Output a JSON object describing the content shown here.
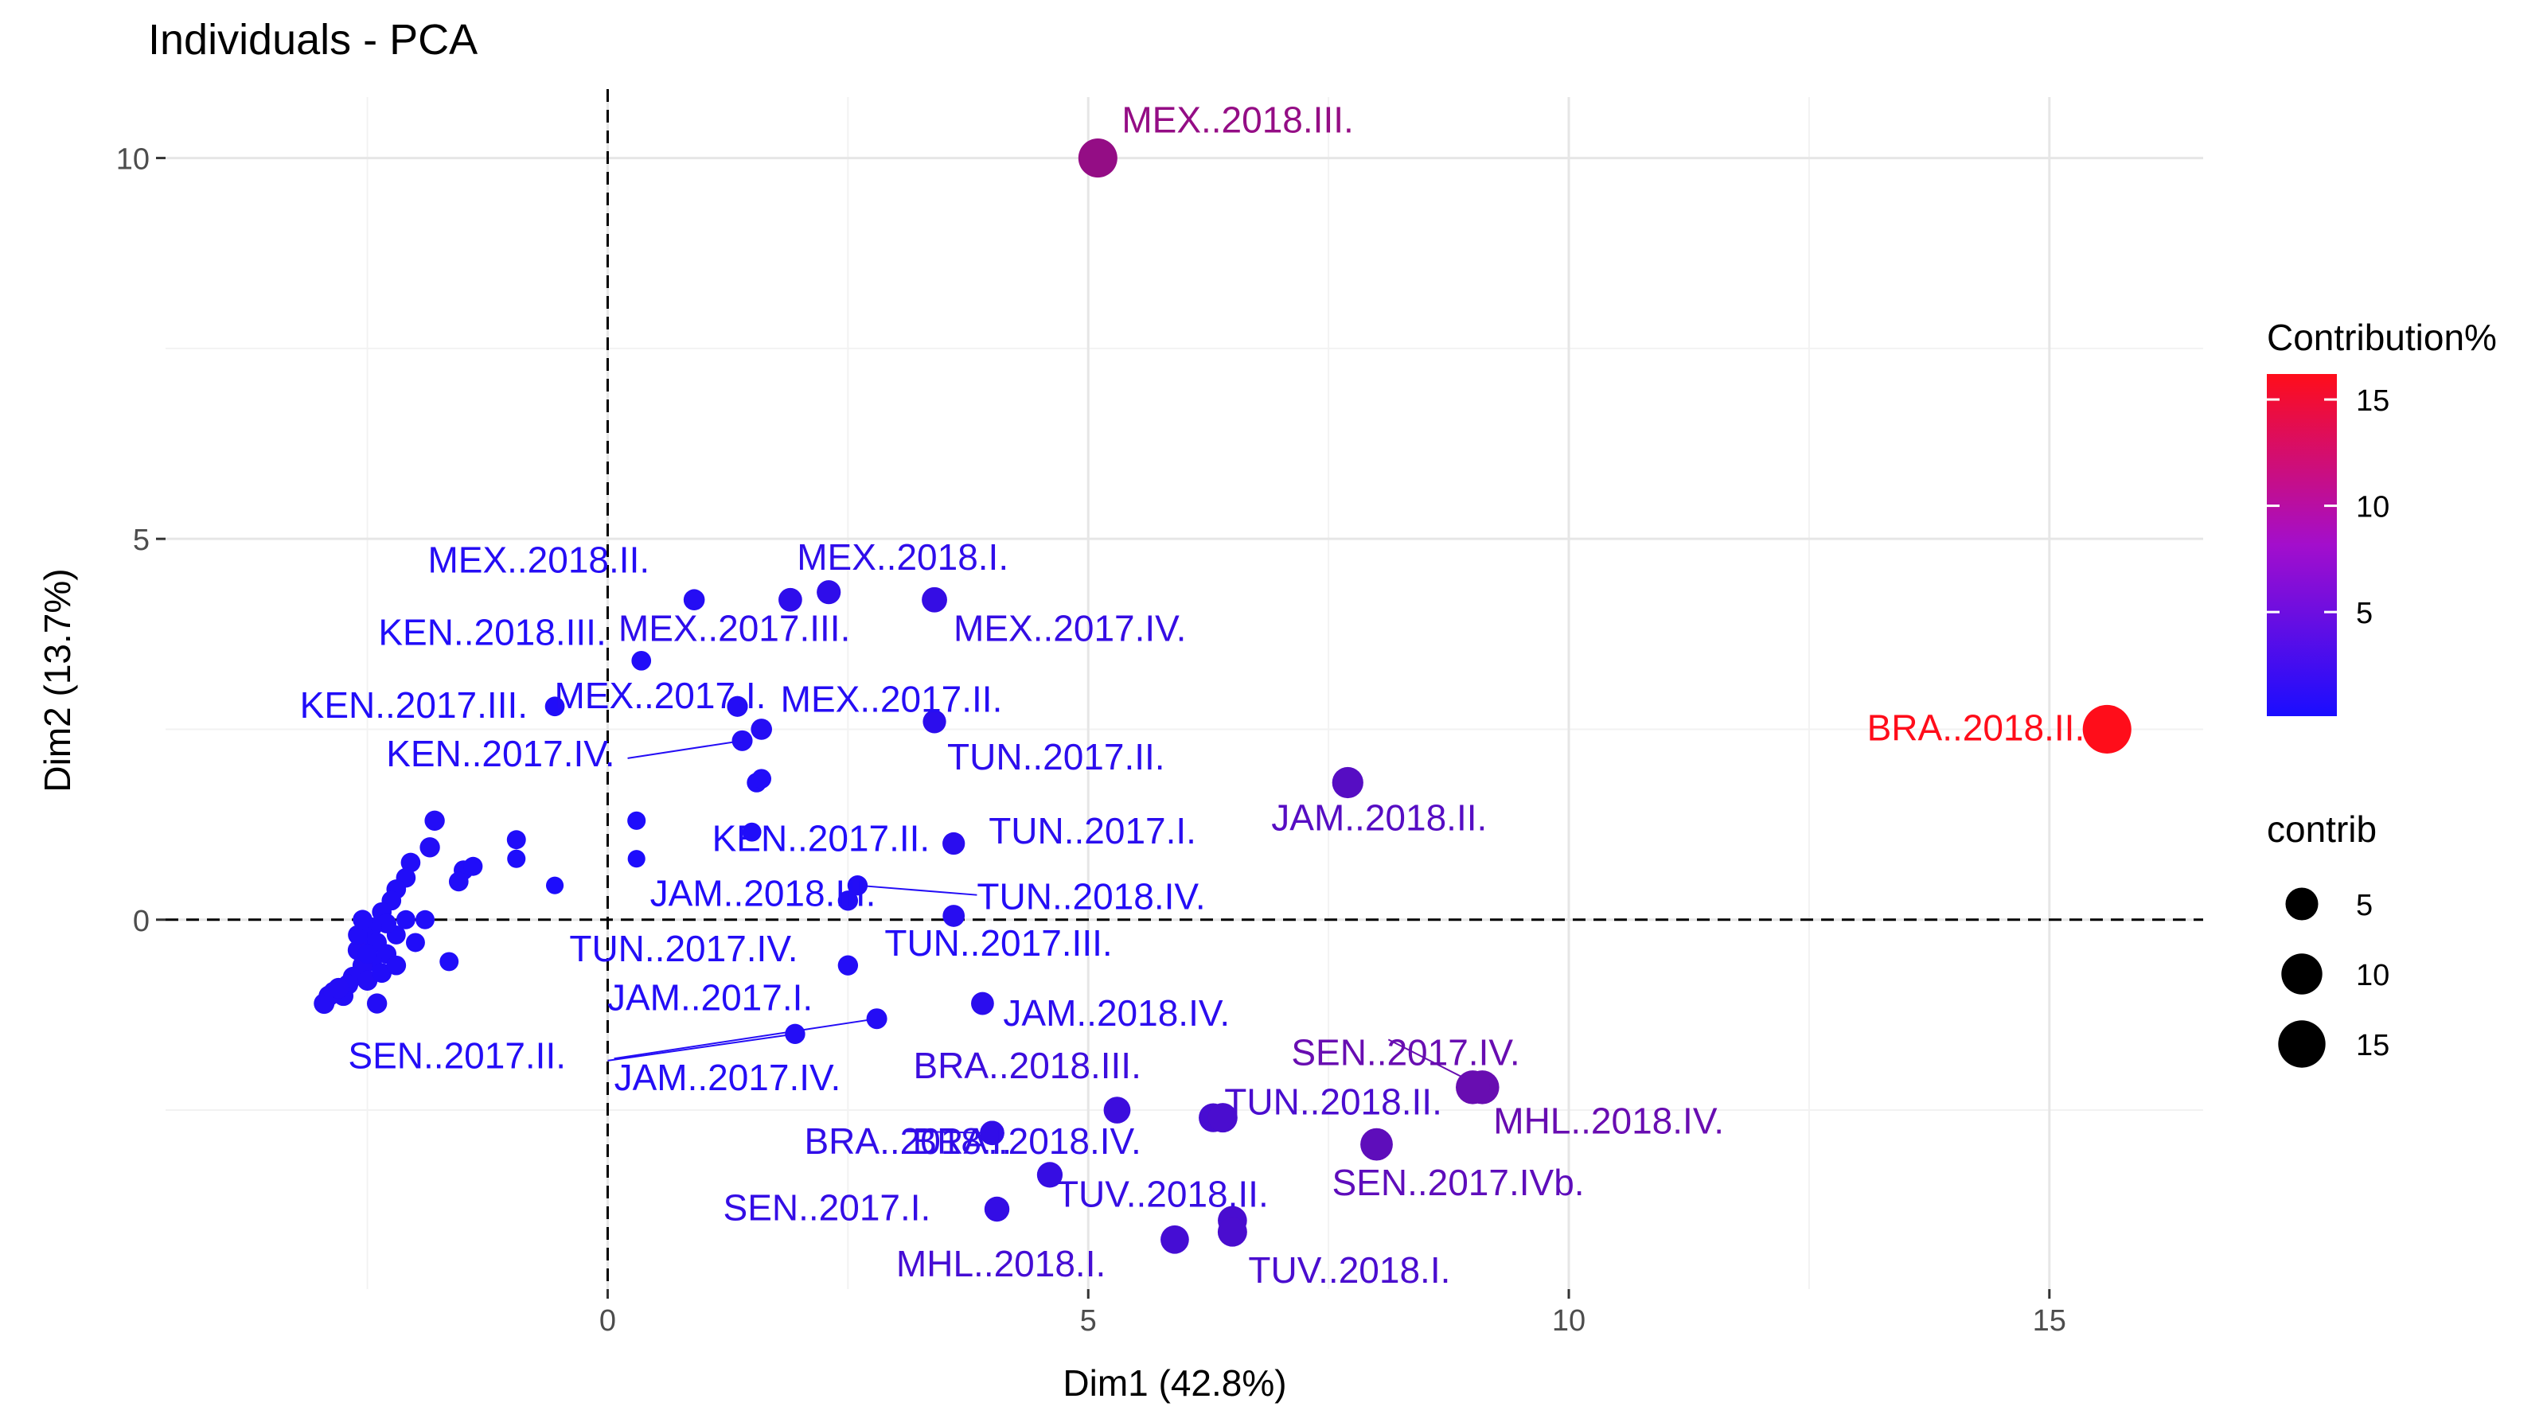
{
  "chart_data": {
    "type": "scatter",
    "title": "Individuals - PCA",
    "xlabel": "Dim1 (42.8%)",
    "ylabel": "Dim2 (13.7%)",
    "xlim": [
      -4.6,
      16.6
    ],
    "ylim": [
      -4.85,
      10.8
    ],
    "x_ticks": [
      0,
      5,
      10,
      15
    ],
    "x_tick_labels": [
      "0",
      "5",
      "10",
      "15"
    ],
    "y_ticks": [
      0,
      5,
      10
    ],
    "y_tick_labels": [
      "0",
      "5",
      "10"
    ],
    "reference_lines": {
      "x": 0,
      "y": 0,
      "style": "dashed"
    },
    "grid": true,
    "legend_color": {
      "title": "Contribution%",
      "ticks": [
        5,
        10,
        15
      ],
      "tick_labels": [
        "5",
        "10",
        "15"
      ],
      "range": [
        0.1,
        16.2
      ],
      "low_color": "#1a0dff",
      "high_color": "#ff0d1a",
      "placement": "right"
    },
    "legend_size": {
      "title": "contrib",
      "values": [
        5,
        10,
        15
      ],
      "labels": [
        "5",
        "10",
        "15"
      ],
      "placement": "right"
    },
    "labeled_points": [
      {
        "label": "MEX..2018.III.",
        "x": 5.1,
        "y": 10.0,
        "contrib": 8.7
      },
      {
        "label": "BRA..2018.II.",
        "x": 15.6,
        "y": 2.5,
        "contrib": 16.2
      },
      {
        "label": "MEX..2018.II.",
        "x": 0.9,
        "y": 4.2,
        "contrib": 0.9
      },
      {
        "label": "MEX..2018.I.",
        "x": 2.3,
        "y": 4.3,
        "contrib": 1.6
      },
      {
        "label": "MEX..2017.III.",
        "x": 1.9,
        "y": 4.2,
        "contrib": 1.5
      },
      {
        "label": "MEX..2017.IV.",
        "x": 3.4,
        "y": 4.2,
        "contrib": 2.0
      },
      {
        "label": "KEN..2018.III.",
        "x": 0.35,
        "y": 3.4,
        "contrib": 0.6
      },
      {
        "label": "KEN..2017.III.",
        "x": -0.55,
        "y": 2.8,
        "contrib": 0.6
      },
      {
        "label": "MEX..2017.I.",
        "x": 1.35,
        "y": 2.8,
        "contrib": 0.8
      },
      {
        "label": "MEX..2017.II.",
        "x": 1.6,
        "y": 2.5,
        "contrib": 0.9
      },
      {
        "label": "KEN..2017.IV.",
        "x": 1.4,
        "y": 2.35,
        "contrib": 0.8
      },
      {
        "label": "TUN..2017.II.",
        "x": 3.4,
        "y": 2.6,
        "contrib": 1.4
      },
      {
        "label": "JAM..2018.III.",
        "x": 1.6,
        "y": 1.85,
        "contrib": 0.6
      },
      {
        "label": "JAM..2018.II.",
        "x": 7.7,
        "y": 1.8,
        "contrib": 4.3
      },
      {
        "label": "KEN..2017.II.",
        "x": 1.5,
        "y": 1.15,
        "contrib": 0.5
      },
      {
        "label": "TUN..2017.I.",
        "x": 3.6,
        "y": 1.0,
        "contrib": 1.2
      },
      {
        "label": "TUN..2018.IV.",
        "x": 2.6,
        "y": 0.45,
        "contrib": 0.7
      },
      {
        "label": "TUN..2017.IV.",
        "x": 2.5,
        "y": 0.25,
        "contrib": 0.7
      },
      {
        "label": "TUN..2017.III.",
        "x": 2.5,
        "y": -0.6,
        "contrib": 0.7
      },
      {
        "label": "JAM..2017.I.",
        "x": 1.95,
        "y": -1.5,
        "contrib": 0.7
      },
      {
        "label": "SEN..2017.II.",
        "x": -2.4,
        "y": -1.1,
        "contrib": 0.7
      },
      {
        "label": "JAM..2017.IV.",
        "x": 2.8,
        "y": -1.3,
        "contrib": 0.8
      },
      {
        "label": "JAM..2018.IV.",
        "x": 3.9,
        "y": -1.1,
        "contrib": 1.3
      },
      {
        "label": "BRA..2018.III.",
        "x": 5.3,
        "y": -2.5,
        "contrib": 2.5
      },
      {
        "label": "SEN..2017.IV.",
        "x": 9.1,
        "y": -2.2,
        "contrib": 5.6
      },
      {
        "label": "TUN..2018.II.",
        "x": 6.4,
        "y": -2.6,
        "contrib": 3.5
      },
      {
        "label": "MHL..2018.IV.",
        "x": 9.0,
        "y": -2.2,
        "contrib": 5.6
      },
      {
        "label": "BRA..2018.I.",
        "x": 4.0,
        "y": -2.8,
        "contrib": 1.7
      },
      {
        "label": "BRA..2018.IV.",
        "x": 4.0,
        "y": -2.8,
        "contrib": 1.7
      },
      {
        "label": "SEN..2017.IVb.",
        "x": 8.0,
        "y": -2.95,
        "contrib": 4.9
      },
      {
        "label": "TUV..2018.II.",
        "x": 4.6,
        "y": -3.35,
        "contrib": 2.1
      },
      {
        "label": "SEN..2017.I.",
        "x": 4.05,
        "y": -3.8,
        "contrib": 1.9
      },
      {
        "label": "MHL..2018.I.",
        "x": 5.9,
        "y": -4.2,
        "contrib": 3.1
      },
      {
        "label": "TUV..2018.I.",
        "x": 6.5,
        "y": -4.1,
        "contrib": 3.5
      }
    ],
    "extra_points": [
      {
        "x": 6.3,
        "y": -2.6,
        "contrib": 3.3
      },
      {
        "x": 6.5,
        "y": -3.95,
        "contrib": 3.4
      },
      {
        "x": 3.6,
        "y": 0.05,
        "contrib": 1.1
      },
      {
        "x": 1.55,
        "y": 1.8,
        "contrib": 0.6
      },
      {
        "x": 0.3,
        "y": 1.3,
        "contrib": 0.4
      },
      {
        "x": 0.3,
        "y": 0.8,
        "contrib": 0.3
      },
      {
        "x": 1.35,
        "y": 2.8,
        "contrib": 0.8
      },
      {
        "x": -0.95,
        "y": 1.05,
        "contrib": 0.5
      },
      {
        "x": -0.95,
        "y": 0.8,
        "contrib": 0.4
      },
      {
        "x": -0.55,
        "y": 0.45,
        "contrib": 0.3
      },
      {
        "x": -1.8,
        "y": 1.3,
        "contrib": 0.7
      },
      {
        "x": -1.85,
        "y": 0.95,
        "contrib": 0.7
      },
      {
        "x": -1.5,
        "y": 0.65,
        "contrib": 0.6
      },
      {
        "x": -1.55,
        "y": 0.5,
        "contrib": 0.6
      },
      {
        "x": -1.4,
        "y": 0.7,
        "contrib": 0.5
      },
      {
        "x": -2.05,
        "y": 0.75,
        "contrib": 0.6
      },
      {
        "x": -2.1,
        "y": 0.55,
        "contrib": 0.6
      },
      {
        "x": -2.2,
        "y": 0.4,
        "contrib": 0.6
      },
      {
        "x": -2.25,
        "y": 0.25,
        "contrib": 0.6
      },
      {
        "x": -2.35,
        "y": 0.1,
        "contrib": 0.6
      },
      {
        "x": -2.1,
        "y": 0.0,
        "contrib": 0.5
      },
      {
        "x": -2.2,
        "y": -0.2,
        "contrib": 0.5
      },
      {
        "x": -2.3,
        "y": -0.05,
        "contrib": 0.6
      },
      {
        "x": -2.45,
        "y": -0.1,
        "contrib": 0.6
      },
      {
        "x": -2.5,
        "y": -0.25,
        "contrib": 0.6
      },
      {
        "x": -2.4,
        "y": -0.3,
        "contrib": 0.6
      },
      {
        "x": -2.3,
        "y": -0.45,
        "contrib": 0.6
      },
      {
        "x": -2.45,
        "y": -0.55,
        "contrib": 0.6
      },
      {
        "x": -2.6,
        "y": -0.4,
        "contrib": 0.7
      },
      {
        "x": -2.55,
        "y": -0.6,
        "contrib": 0.7
      },
      {
        "x": -2.65,
        "y": -0.75,
        "contrib": 0.7
      },
      {
        "x": -2.5,
        "y": -0.8,
        "contrib": 0.7
      },
      {
        "x": -2.7,
        "y": -0.85,
        "contrib": 0.7
      },
      {
        "x": -2.75,
        "y": -1.0,
        "contrib": 0.7
      },
      {
        "x": -2.9,
        "y": -1.0,
        "contrib": 0.8
      },
      {
        "x": -2.95,
        "y": -1.1,
        "contrib": 0.8
      },
      {
        "x": -2.35,
        "y": -0.7,
        "contrib": 0.6
      },
      {
        "x": -2.2,
        "y": -0.6,
        "contrib": 0.6
      },
      {
        "x": -2.0,
        "y": -0.3,
        "contrib": 0.5
      },
      {
        "x": -1.65,
        "y": -0.55,
        "contrib": 0.5
      },
      {
        "x": -1.9,
        "y": 0.0,
        "contrib": 0.5
      },
      {
        "x": -2.6,
        "y": -0.2,
        "contrib": 0.6
      },
      {
        "x": -2.55,
        "y": 0.0,
        "contrib": 0.6
      },
      {
        "x": -2.85,
        "y": -0.95,
        "contrib": 0.8
      },
      {
        "x": -2.8,
        "y": -0.9,
        "contrib": 0.8
      },
      {
        "x": -2.5,
        "y": -0.45,
        "contrib": 0.6
      }
    ]
  }
}
